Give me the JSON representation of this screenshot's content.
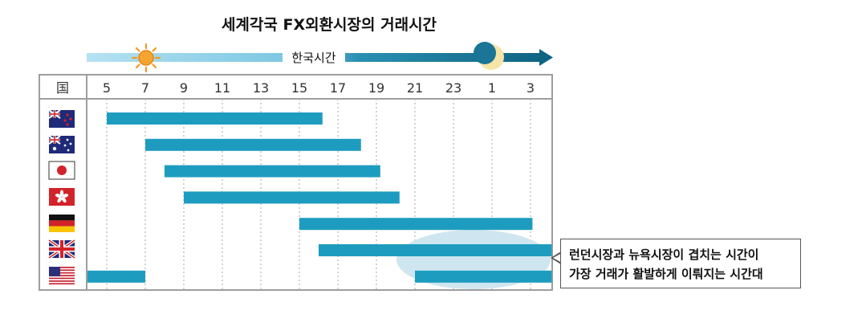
{
  "chart_data": {
    "type": "bar",
    "title": "세계각국 FX외환시장의 거래시간",
    "time_arrow_label": "한국시간",
    "country_header": "国",
    "x_ticks": [
      "5",
      "7",
      "9",
      "11",
      "13",
      "15",
      "17",
      "19",
      "21",
      "23",
      "1",
      "3"
    ],
    "colors": {
      "bar": "#1e9cc0",
      "highlight": "#cfe6f0",
      "arrow_light": "#a9dcee",
      "arrow_dark": "#146f8c"
    },
    "rows": [
      {
        "flag": "new-zealand",
        "sessions": [
          [
            5,
            16.2
          ]
        ]
      },
      {
        "flag": "australia",
        "sessions": [
          [
            7,
            18.2
          ]
        ]
      },
      {
        "flag": "japan",
        "sessions": [
          [
            8,
            19.2
          ]
        ]
      },
      {
        "flag": "hong-kong",
        "sessions": [
          [
            9,
            20.2
          ]
        ]
      },
      {
        "flag": "germany",
        "sessions": [
          [
            15,
            27.1
          ]
        ]
      },
      {
        "flag": "united-kingdom",
        "sessions": [
          [
            16,
            28.1
          ]
        ]
      },
      {
        "flag": "united-states",
        "sessions": [
          [
            4,
            7
          ],
          [
            21,
            28.1
          ]
        ]
      }
    ]
  },
  "callout": {
    "line1": "런던시장과 뉴욕시장이 겹치는 시간이",
    "line2": "가장 거래가 활발하게 이뤄지는 시간대"
  }
}
